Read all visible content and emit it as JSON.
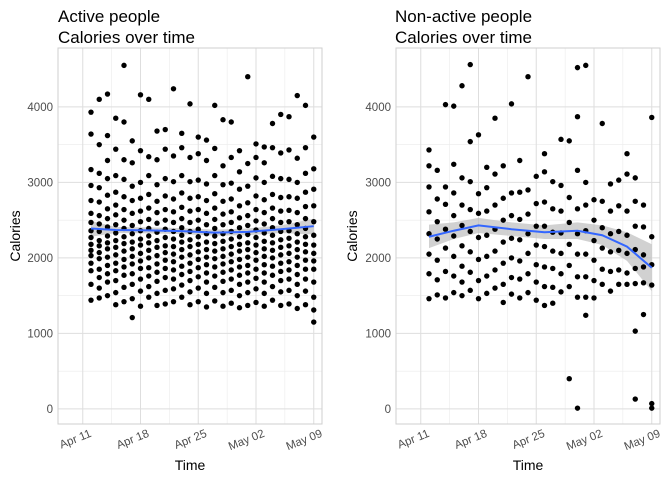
{
  "chart_data": [
    {
      "type": "scatter",
      "title_line1": "Active people",
      "title_line2": "Calories over time",
      "xlabel": "Time",
      "ylabel": "Calories",
      "x_ticks": [
        "Apr 11",
        "Apr 18",
        "Apr 25",
        "May 02",
        "May 09"
      ],
      "x_tick_dates": [
        "2016-04-11",
        "2016-04-18",
        "2016-04-25",
        "2016-05-02",
        "2016-05-09"
      ],
      "x_range": [
        "2016-04-08",
        "2016-05-10"
      ],
      "y_ticks": [
        0,
        1000,
        2000,
        3000,
        4000
      ],
      "ylim": [
        -200,
        4780
      ],
      "grid": true,
      "point_color": "#000000",
      "smooth_color": "#3366ff",
      "ribbon_color": "#bdbdbd",
      "smooth_x": [
        "2016-04-12",
        "2016-04-15",
        "2016-04-19",
        "2016-04-23",
        "2016-04-27",
        "2016-05-01",
        "2016-05-05",
        "2016-05-09"
      ],
      "smooth_y": [
        2390,
        2370,
        2365,
        2355,
        2335,
        2345,
        2380,
        2420
      ],
      "ribbon_lo": [
        2280,
        2330,
        2325,
        2315,
        2295,
        2300,
        2330,
        2310
      ],
      "ribbon_hi": [
        2490,
        2410,
        2405,
        2395,
        2375,
        2390,
        2430,
        2520
      ],
      "points": [
        {
          "x": "2016-04-12",
          "y": [
            1440,
            1650,
            1830,
            1930,
            2030,
            2100,
            2180,
            2270,
            2360,
            2470,
            2590,
            2760,
            2960,
            3170,
            3640,
            3930
          ]
        },
        {
          "x": "2016-04-13",
          "y": [
            1470,
            1600,
            1740,
            1850,
            1990,
            2070,
            2160,
            2230,
            2350,
            2450,
            2560,
            2740,
            2930,
            3120,
            3500,
            4100
          ]
        },
        {
          "x": "2016-04-14",
          "y": [
            1500,
            1680,
            1790,
            1900,
            2010,
            2120,
            2200,
            2290,
            2410,
            2520,
            2650,
            2830,
            3050,
            3290,
            3620,
            4170
          ]
        },
        {
          "x": "2016-04-15",
          "y": [
            1380,
            1540,
            1700,
            1830,
            1930,
            2040,
            2140,
            2230,
            2330,
            2440,
            2570,
            2700,
            2870,
            3090,
            3440,
            3850
          ]
        },
        {
          "x": "2016-04-16",
          "y": [
            1420,
            1610,
            1770,
            1880,
            1980,
            2090,
            2190,
            2280,
            2390,
            2500,
            2640,
            2810,
            3040,
            3300,
            3800,
            4550
          ]
        },
        {
          "x": "2016-04-17",
          "y": [
            1210,
            1460,
            1650,
            1790,
            1920,
            2020,
            2120,
            2210,
            2320,
            2430,
            2590,
            2760,
            2950,
            3260,
            3550
          ]
        },
        {
          "x": "2016-04-18",
          "y": [
            1360,
            1560,
            1720,
            1860,
            1960,
            2060,
            2170,
            2250,
            2360,
            2480,
            2620,
            2790,
            3000,
            3420,
            4160
          ]
        },
        {
          "x": "2016-04-19",
          "y": [
            1480,
            1620,
            1760,
            1870,
            2000,
            2100,
            2200,
            2290,
            2390,
            2510,
            2660,
            2840,
            3090,
            3340,
            4100
          ]
        },
        {
          "x": "2016-04-20",
          "y": [
            1370,
            1530,
            1690,
            1810,
            1920,
            2030,
            2140,
            2230,
            2340,
            2460,
            2600,
            2750,
            2970,
            3300,
            3680
          ]
        },
        {
          "x": "2016-04-21",
          "y": [
            1390,
            1570,
            1740,
            1860,
            1970,
            2070,
            2160,
            2270,
            2380,
            2500,
            2640,
            2820,
            3050,
            3440,
            3700
          ]
        },
        {
          "x": "2016-04-22",
          "y": [
            1420,
            1590,
            1720,
            1840,
            1950,
            2050,
            2150,
            2250,
            2350,
            2470,
            2610,
            2780,
            3010,
            3350,
            4240
          ]
        },
        {
          "x": "2016-04-23",
          "y": [
            1480,
            1640,
            1780,
            1890,
            2010,
            2110,
            2210,
            2300,
            2400,
            2520,
            2670,
            2860,
            3090,
            3460,
            3650
          ]
        },
        {
          "x": "2016-04-24",
          "y": [
            1380,
            1550,
            1700,
            1820,
            1930,
            2040,
            2150,
            2240,
            2350,
            2470,
            2620,
            2790,
            3010,
            3330,
            4040
          ]
        },
        {
          "x": "2016-04-25",
          "y": [
            1420,
            1600,
            1750,
            1870,
            1980,
            2080,
            2180,
            2280,
            2380,
            2500,
            2640,
            2810,
            3030,
            3380,
            3600
          ]
        },
        {
          "x": "2016-04-26",
          "y": [
            1350,
            1530,
            1680,
            1800,
            1910,
            2010,
            2110,
            2210,
            2320,
            2440,
            2590,
            2760,
            2980,
            3290,
            3560
          ]
        },
        {
          "x": "2016-04-27",
          "y": [
            1430,
            1610,
            1760,
            1880,
            1990,
            2090,
            2190,
            2290,
            2390,
            2510,
            2660,
            2850,
            3090,
            3450,
            4020
          ]
        },
        {
          "x": "2016-04-28",
          "y": [
            1360,
            1540,
            1690,
            1810,
            1920,
            2020,
            2120,
            2220,
            2320,
            2440,
            2580,
            2750,
            2970,
            3220,
            3830
          ]
        },
        {
          "x": "2016-04-29",
          "y": [
            1400,
            1570,
            1720,
            1840,
            1950,
            2050,
            2150,
            2250,
            2350,
            2470,
            2610,
            2780,
            2990,
            3330,
            3800
          ]
        },
        {
          "x": "2016-04-30",
          "y": [
            1340,
            1500,
            1650,
            1770,
            1880,
            1980,
            2090,
            2180,
            2280,
            2400,
            2530,
            2690,
            2910,
            3140,
            3420
          ]
        },
        {
          "x": "2016-05-01",
          "y": [
            1370,
            1540,
            1680,
            1800,
            1900,
            2010,
            2110,
            2200,
            2310,
            2430,
            2560,
            2730,
            2950,
            3250,
            4400
          ]
        },
        {
          "x": "2016-05-02",
          "y": [
            1410,
            1590,
            1730,
            1850,
            1970,
            2070,
            2170,
            2270,
            2370,
            2490,
            2640,
            2820,
            3060,
            3330,
            3510
          ]
        },
        {
          "x": "2016-05-03",
          "y": [
            1360,
            1530,
            1680,
            1800,
            1910,
            2020,
            2120,
            2220,
            2330,
            2450,
            2600,
            2770,
            3000,
            3260,
            3470
          ]
        },
        {
          "x": "2016-05-04",
          "y": [
            1440,
            1620,
            1770,
            1890,
            2000,
            2100,
            2200,
            2300,
            2400,
            2520,
            2660,
            2840,
            3080,
            3460,
            3780
          ]
        },
        {
          "x": "2016-05-05",
          "y": [
            1370,
            1550,
            1700,
            1820,
            1930,
            2040,
            2140,
            2240,
            2350,
            2470,
            2620,
            2800,
            3050,
            3390,
            3900
          ]
        },
        {
          "x": "2016-05-06",
          "y": [
            1390,
            1570,
            1720,
            1840,
            1950,
            2060,
            2160,
            2260,
            2360,
            2480,
            2630,
            2810,
            3040,
            3430,
            3870
          ]
        },
        {
          "x": "2016-05-07",
          "y": [
            1330,
            1500,
            1650,
            1780,
            1900,
            2010,
            2110,
            2210,
            2320,
            2440,
            2600,
            2790,
            3000,
            3320,
            4150
          ]
        },
        {
          "x": "2016-05-08",
          "y": [
            1380,
            1560,
            1720,
            1850,
            1970,
            2080,
            2180,
            2280,
            2390,
            2520,
            2680,
            2870,
            3120,
            3460,
            4020
          ]
        },
        {
          "x": "2016-05-09",
          "y": [
            1150,
            1310,
            1480,
            1680,
            1850,
            1960,
            2060,
            2170,
            2300,
            2480,
            2690,
            2910,
            3180,
            3600
          ]
        }
      ]
    },
    {
      "type": "scatter",
      "title_line1": "Non-active people",
      "title_line2": "Calories over time",
      "xlabel": "Time",
      "ylabel": "Calories",
      "x_ticks": [
        "Apr 11",
        "Apr 18",
        "Apr 25",
        "May 02",
        "May 09"
      ],
      "x_tick_dates": [
        "2016-04-11",
        "2016-04-18",
        "2016-04-25",
        "2016-05-02",
        "2016-05-09"
      ],
      "x_range": [
        "2016-04-08",
        "2016-05-10"
      ],
      "y_ticks": [
        0,
        1000,
        2000,
        3000,
        4000
      ],
      "ylim": [
        -200,
        4780
      ],
      "grid": true,
      "point_color": "#000000",
      "smooth_color": "#3366ff",
      "ribbon_color": "#bdbdbd",
      "smooth_x": [
        "2016-04-12",
        "2016-04-15",
        "2016-04-18",
        "2016-04-22",
        "2016-04-26",
        "2016-04-30",
        "2016-05-03",
        "2016-05-06",
        "2016-05-09"
      ],
      "smooth_y": [
        2280,
        2360,
        2430,
        2380,
        2340,
        2360,
        2300,
        2150,
        1870
      ],
      "ribbon_lo": [
        2130,
        2250,
        2330,
        2290,
        2250,
        2250,
        2170,
        1960,
        1560
      ],
      "ribbon_hi": [
        2440,
        2470,
        2530,
        2470,
        2430,
        2470,
        2430,
        2340,
        2180
      ],
      "points": [
        {
          "x": "2016-04-12",
          "y": [
            1460,
            1790,
            2050,
            2320,
            2610,
            2940,
            3220,
            3430
          ]
        },
        {
          "x": "2016-04-13",
          "y": [
            1510,
            1710,
            1970,
            2250,
            2480,
            2780,
            3160
          ]
        },
        {
          "x": "2016-04-14",
          "y": [
            1470,
            1820,
            2130,
            2380,
            2710,
            2940,
            4030
          ]
        },
        {
          "x": "2016-04-15",
          "y": [
            1540,
            1760,
            2020,
            2290,
            2560,
            2860,
            3240,
            4010
          ]
        },
        {
          "x": "2016-04-16",
          "y": [
            1500,
            1680,
            1890,
            2160,
            2430,
            2700,
            3060,
            4280
          ]
        },
        {
          "x": "2016-04-17",
          "y": [
            1570,
            1810,
            2080,
            2350,
            2640,
            3010,
            3540,
            4560
          ]
        },
        {
          "x": "2016-04-18",
          "y": [
            1460,
            1700,
            1980,
            2270,
            2590,
            2850,
            3630
          ]
        },
        {
          "x": "2016-04-19",
          "y": [
            1530,
            1760,
            2020,
            2300,
            2620,
            2930,
            3200
          ]
        },
        {
          "x": "2016-04-20",
          "y": [
            1600,
            1840,
            2090,
            2380,
            2700,
            3110,
            3850
          ]
        },
        {
          "x": "2016-04-21",
          "y": [
            1410,
            1650,
            1930,
            2210,
            2500,
            2790,
            3220
          ]
        },
        {
          "x": "2016-04-22",
          "y": [
            1520,
            1740,
            2000,
            2260,
            2560,
            2860,
            4040
          ]
        },
        {
          "x": "2016-04-23",
          "y": [
            1470,
            1720,
            1960,
            2240,
            2510,
            2870,
            3290
          ]
        },
        {
          "x": "2016-04-24",
          "y": [
            1540,
            1790,
            2060,
            2320,
            2580,
            2900,
            4400
          ]
        },
        {
          "x": "2016-04-25",
          "y": [
            1440,
            1680,
            1910,
            2170,
            2420,
            2720,
            3080
          ]
        },
        {
          "x": "2016-04-26",
          "y": [
            1370,
            1620,
            1880,
            2150,
            2420,
            2740,
            3140,
            3380
          ]
        },
        {
          "x": "2016-04-27",
          "y": [
            1400,
            1610,
            1860,
            2090,
            2340,
            2650,
            3010
          ]
        },
        {
          "x": "2016-04-28",
          "y": [
            1550,
            1790,
            2060,
            2330,
            2620,
            2960,
            3570
          ]
        },
        {
          "x": "2016-04-29",
          "y": [
            400,
            1620,
            1900,
            2180,
            2470,
            2800,
            3550
          ]
        },
        {
          "x": "2016-04-30",
          "y": [
            10,
            1480,
            1750,
            2050,
            2320,
            2650,
            3160,
            3870,
            4520
          ]
        },
        {
          "x": "2016-05-01",
          "y": [
            1240,
            1480,
            1750,
            2050,
            2360,
            2700,
            3000,
            4550
          ]
        },
        {
          "x": "2016-05-02",
          "y": [
            1470,
            1700,
            1970,
            2230,
            2500,
            2770
          ]
        },
        {
          "x": "2016-05-03",
          "y": [
            1650,
            1850,
            2130,
            2400,
            2750,
            3780
          ]
        },
        {
          "x": "2016-05-04",
          "y": [
            1560,
            1820,
            2080,
            2320,
            2620,
            2980
          ]
        },
        {
          "x": "2016-05-05",
          "y": [
            1650,
            1840,
            2100,
            2350,
            2690,
            3030
          ]
        },
        {
          "x": "2016-05-06",
          "y": [
            1650,
            1800,
            2060,
            2300,
            2620,
            3110,
            3380
          ]
        },
        {
          "x": "2016-05-07",
          "y": [
            130,
            1030,
            1660,
            1860,
            2110,
            2420,
            2750,
            3060
          ]
        },
        {
          "x": "2016-05-08",
          "y": [
            1250,
            1670,
            1880,
            2040,
            2410,
            2700
          ]
        },
        {
          "x": "2016-05-09",
          "y": [
            10,
            70,
            1640,
            1910,
            2280,
            3860
          ]
        }
      ]
    }
  ]
}
